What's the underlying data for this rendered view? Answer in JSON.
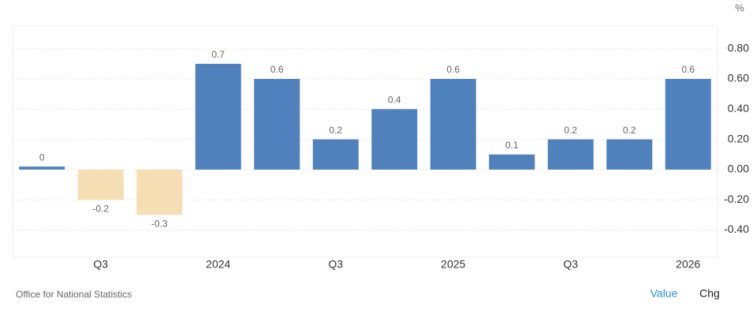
{
  "chart_data": {
    "type": "bar",
    "unit": "%",
    "source": "Office for National Statistics",
    "buttons": [
      "Value",
      "Chg"
    ],
    "categories": [
      null,
      "Q3",
      null,
      "2024",
      null,
      "Q3",
      null,
      "2025",
      null,
      "Q3",
      null,
      "2026"
    ],
    "values": [
      0.02,
      -0.2,
      -0.3,
      0.7,
      0.6,
      0.2,
      0.4,
      0.6,
      0.1,
      0.2,
      0.2,
      0.6
    ],
    "value_labels": [
      "0",
      "-0.2",
      "-0.3",
      "0.7",
      "0.6",
      "0.2",
      "0.4",
      "0.6",
      "0.1",
      "0.2",
      "0.2",
      "0.6"
    ],
    "color": "#4f81bd",
    "negative_color": "#f5deb3",
    "ylim": [
      -0.58,
      0.95
    ],
    "yticks": [
      {
        "value": -0.4,
        "label": "-0.40"
      },
      {
        "value": -0.2,
        "label": "-0.20"
      },
      {
        "value": 0,
        "label": "0.00"
      },
      {
        "value": 0.2,
        "label": "0.20"
      },
      {
        "value": 0.4,
        "label": "0.40"
      },
      {
        "value": 0.6,
        "label": "0.60"
      },
      {
        "value": 0.8,
        "label": "0.80"
      }
    ],
    "grid": true
  }
}
